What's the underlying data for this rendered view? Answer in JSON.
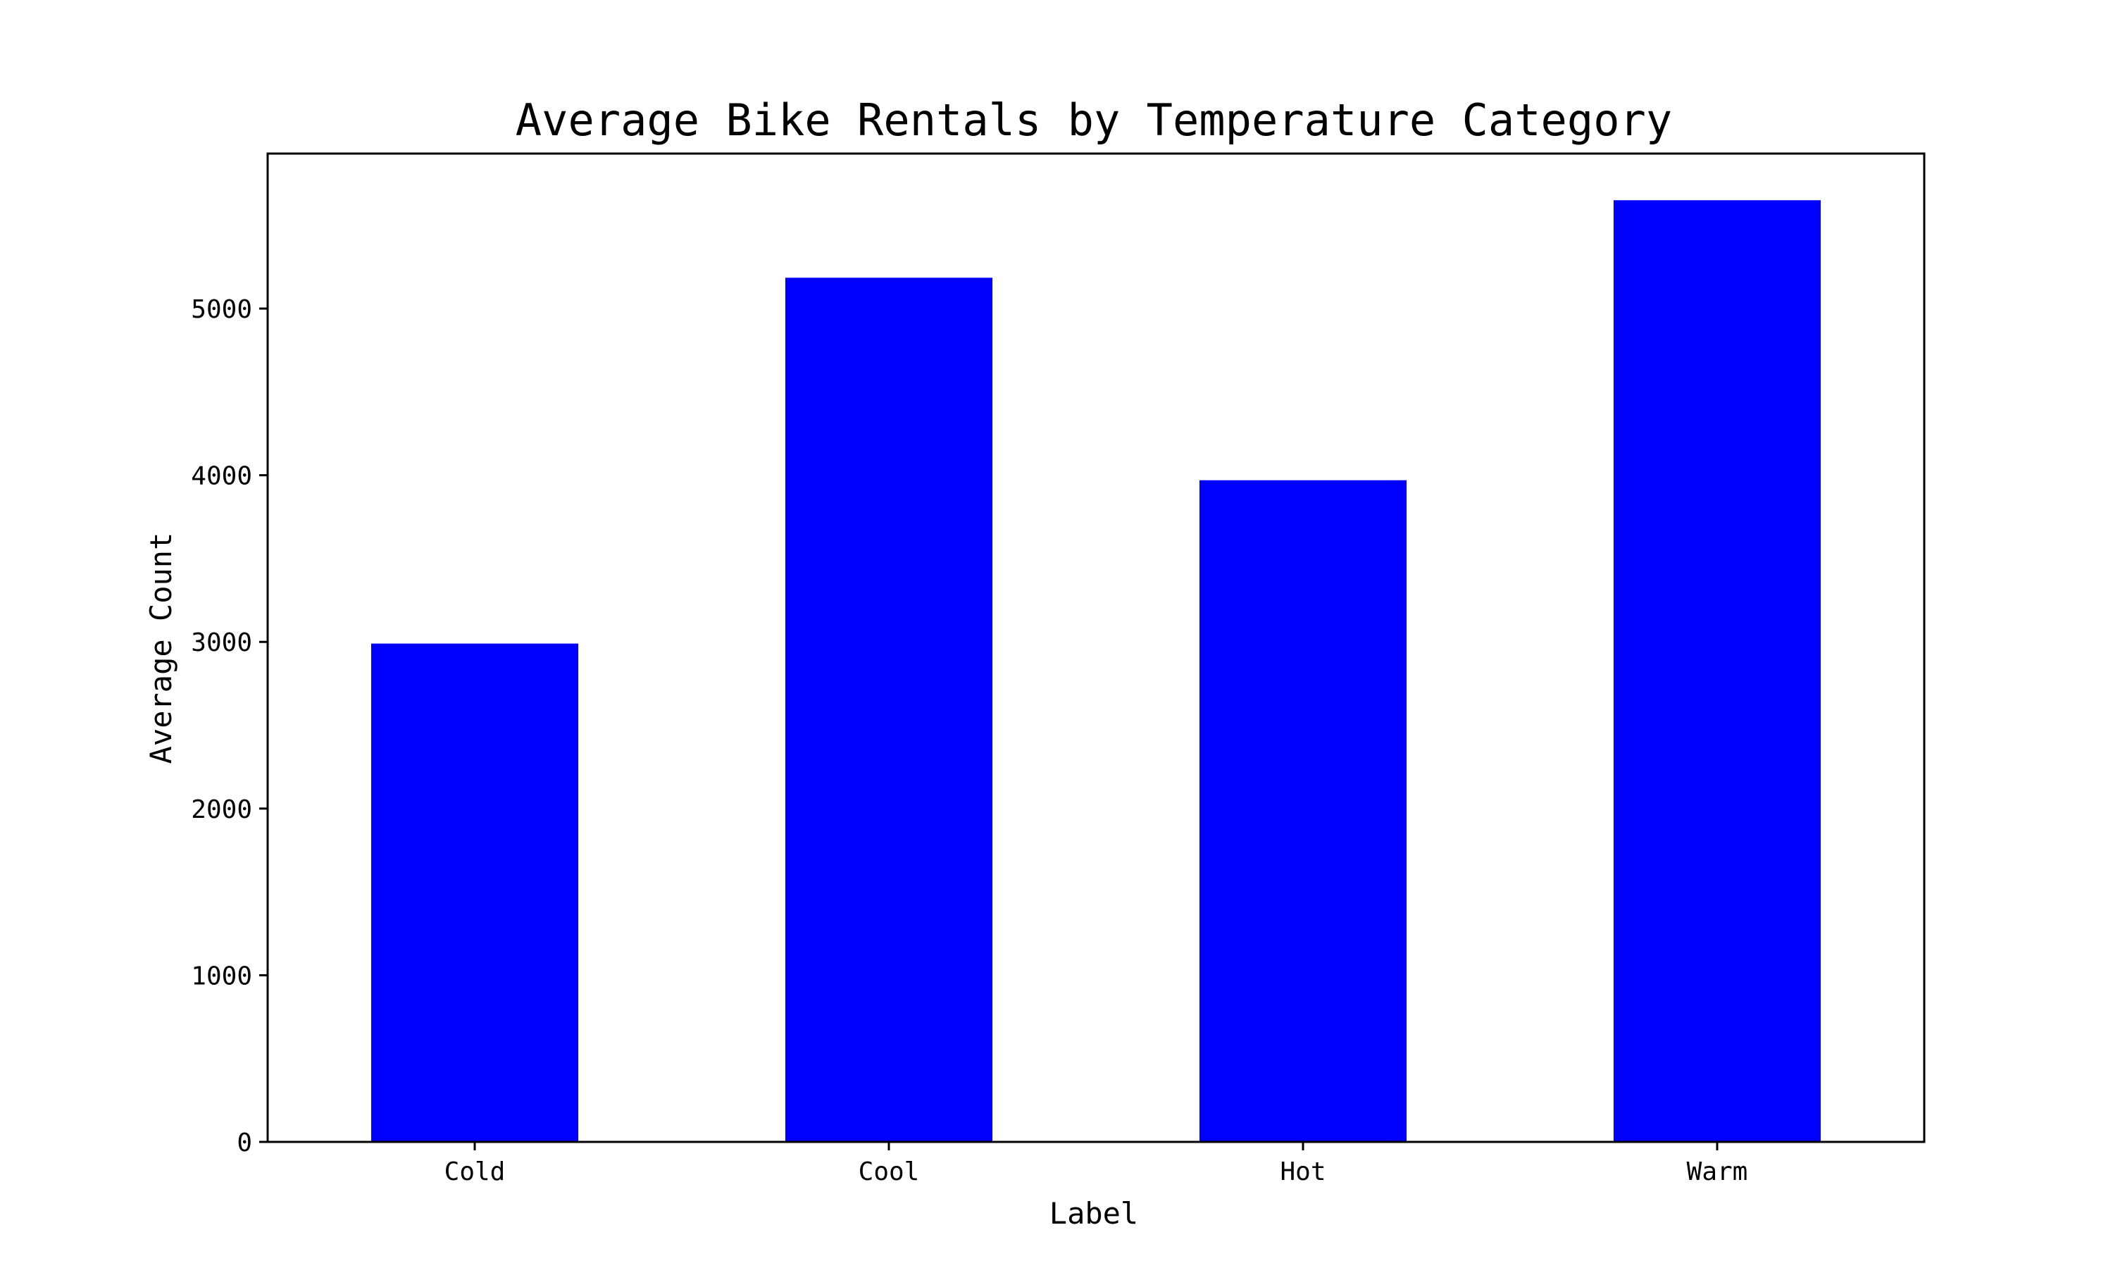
{
  "chart_data": {
    "type": "bar",
    "title": "Average Bike Rentals by Temperature Category",
    "xlabel": "Label",
    "ylabel": "Average Count",
    "categories": [
      "Cold",
      "Cool",
      "Hot",
      "Warm"
    ],
    "values": [
      2990,
      5185,
      3970,
      5650
    ],
    "ylim": [
      0,
      5930
    ],
    "yticks": [
      0,
      1000,
      2000,
      3000,
      4000,
      5000
    ],
    "bar_color": "#0000ff",
    "grid": false,
    "legend": "none"
  }
}
